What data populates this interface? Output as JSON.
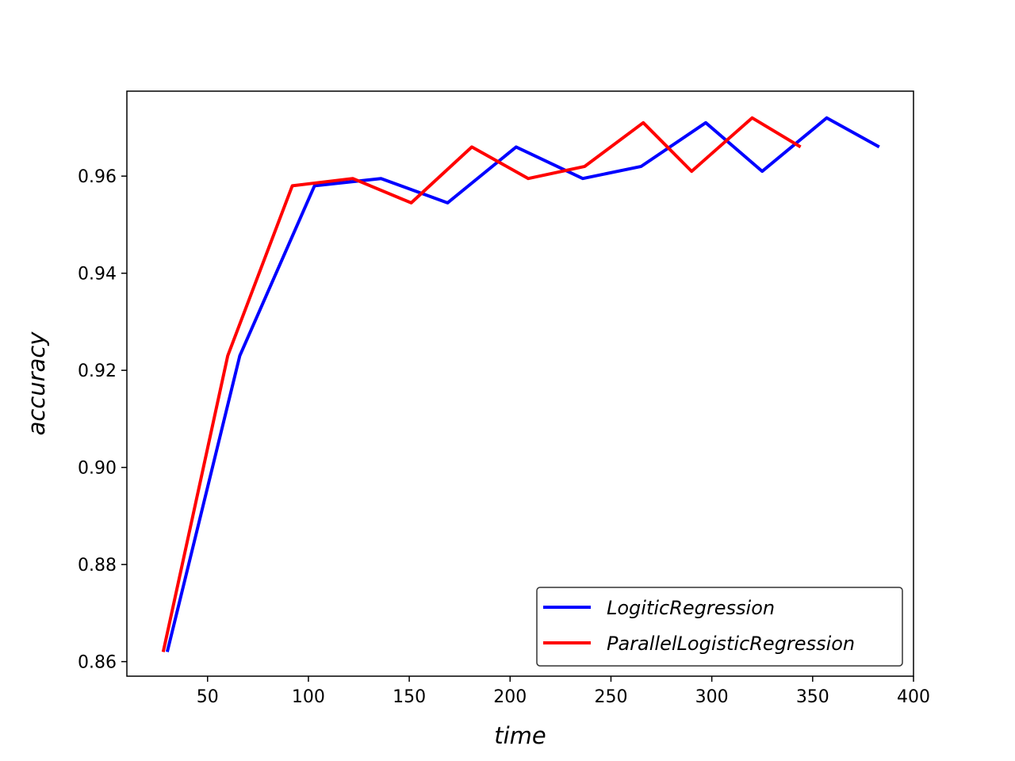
{
  "chart_data": {
    "type": "line",
    "title": "",
    "xlabel": "time",
    "ylabel": "accuracy",
    "xlim": [
      10,
      400
    ],
    "ylim": [
      0.857,
      0.9775
    ],
    "xticks": [
      50,
      100,
      150,
      200,
      250,
      300,
      350,
      400
    ],
    "xtick_labels": [
      "50",
      "100",
      "150",
      "200",
      "250",
      "300",
      "350",
      "400"
    ],
    "yticks": [
      0.86,
      0.88,
      0.9,
      0.92,
      0.94,
      0.96
    ],
    "ytick_labels": [
      "0.86",
      "0.88",
      "0.90",
      "0.92",
      "0.94",
      "0.96"
    ],
    "grid": false,
    "legend_position": "lower-right",
    "series": [
      {
        "name": "LogiticRegression",
        "color": "#0000ff",
        "x": [
          30,
          66,
          103,
          136,
          169,
          203,
          236,
          265,
          297,
          325,
          357,
          383
        ],
        "y": [
          0.862,
          0.923,
          0.958,
          0.9595,
          0.9545,
          0.966,
          0.9595,
          0.962,
          0.971,
          0.961,
          0.972,
          0.966
        ]
      },
      {
        "name": "ParallelLogisticRegression",
        "color": "#ff0000",
        "x": [
          28,
          60,
          92,
          122,
          151,
          181,
          209,
          237,
          266,
          290,
          320,
          344
        ],
        "y": [
          0.862,
          0.923,
          0.958,
          0.9595,
          0.9545,
          0.966,
          0.9595,
          0.962,
          0.971,
          0.961,
          0.972,
          0.966
        ]
      }
    ]
  }
}
